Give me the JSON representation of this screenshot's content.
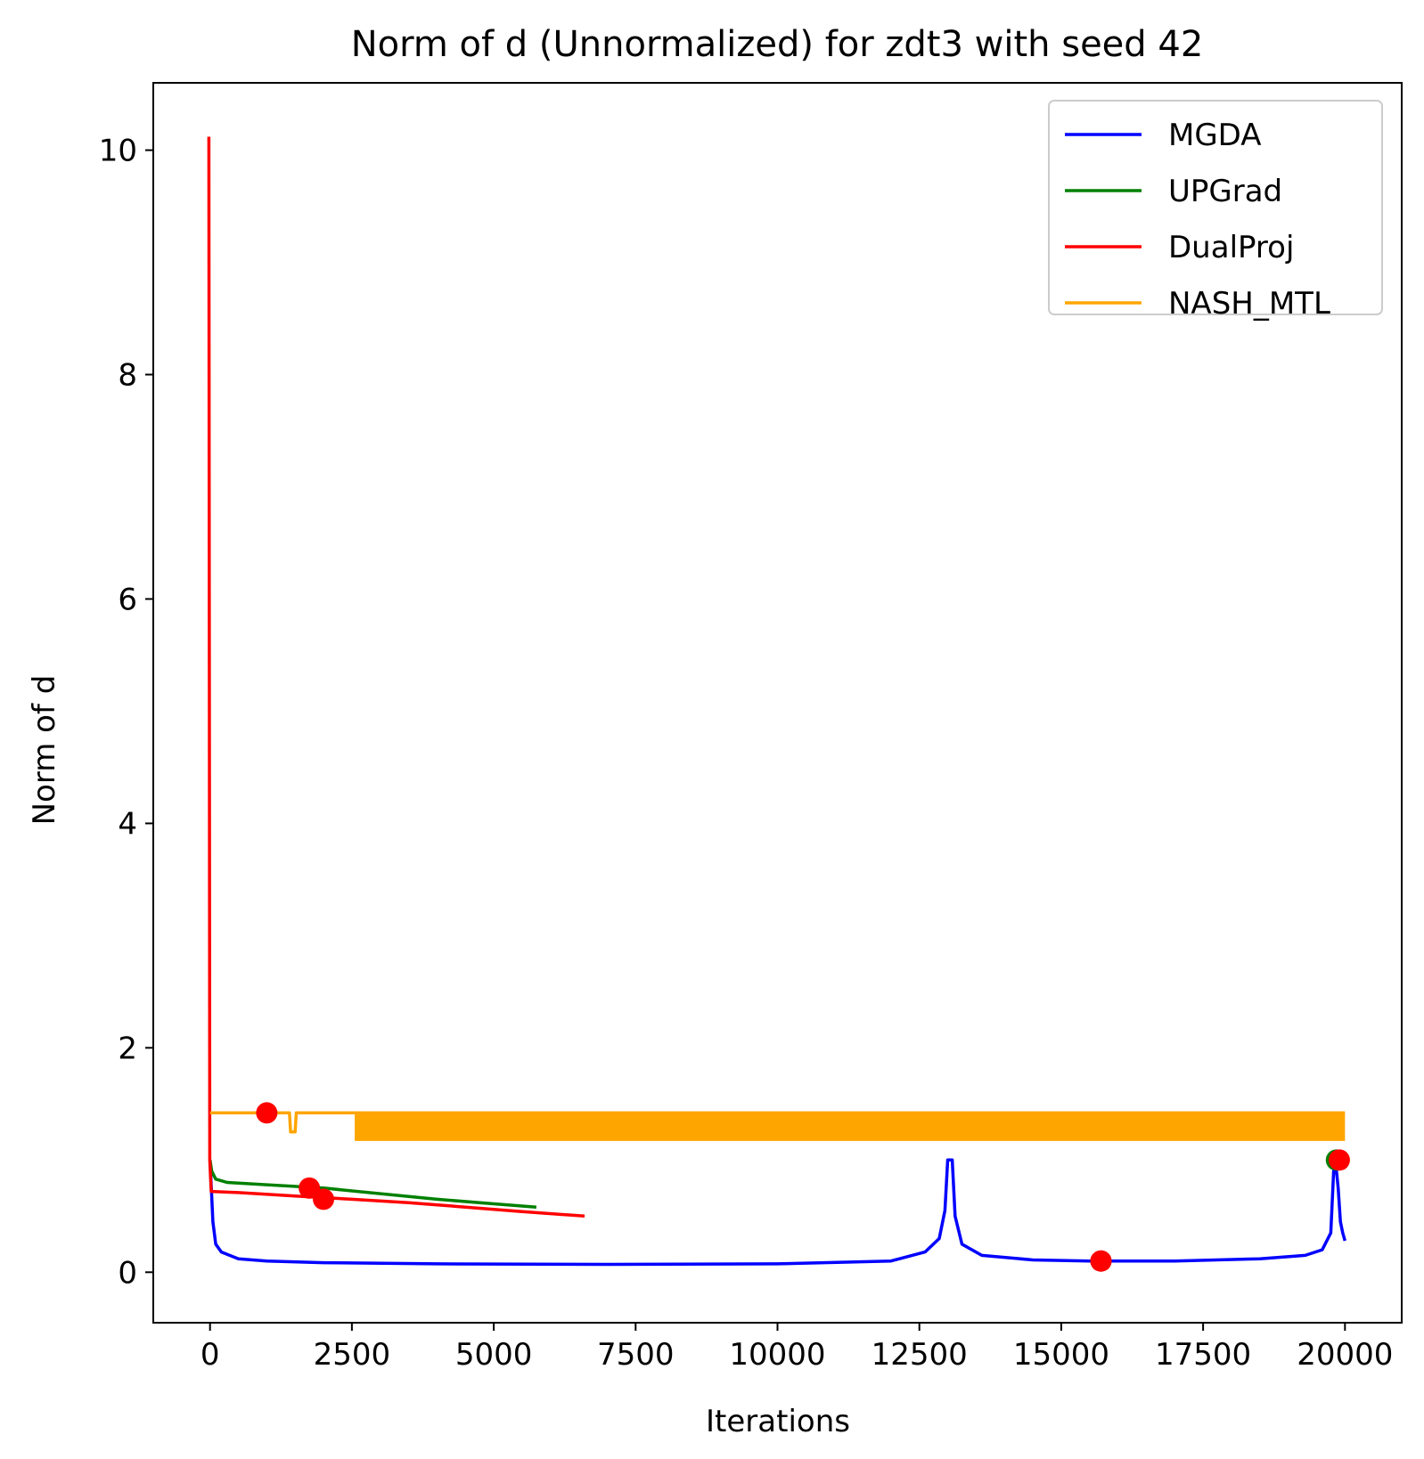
{
  "chart_data": {
    "type": "line",
    "title": "Norm of d (Unnormalized) for zdt3 with seed 42",
    "xlabel": "Iterations",
    "ylabel": "Norm of d",
    "xlim": [
      -1000,
      21000
    ],
    "ylim": [
      -0.45,
      10.6
    ],
    "xticks": [
      0,
      2500,
      5000,
      7500,
      10000,
      12500,
      15000,
      17500,
      20000
    ],
    "xtick_labels": [
      "0",
      "2500",
      "5000",
      "7500",
      "10000",
      "12500",
      "15000",
      "17500",
      "20000"
    ],
    "yticks": [
      0,
      2,
      4,
      6,
      8,
      10
    ],
    "ytick_labels": [
      "0",
      "2",
      "4",
      "6",
      "8",
      "10"
    ],
    "grid": false,
    "legend_position": "upper right",
    "series": [
      {
        "name": "MGDA",
        "color": "#0000ff",
        "points": [
          [
            0,
            1.0
          ],
          [
            50,
            0.45
          ],
          [
            100,
            0.25
          ],
          [
            200,
            0.18
          ],
          [
            500,
            0.12
          ],
          [
            1000,
            0.1
          ],
          [
            2000,
            0.085
          ],
          [
            4000,
            0.075
          ],
          [
            7000,
            0.07
          ],
          [
            10000,
            0.075
          ],
          [
            12000,
            0.1
          ],
          [
            12600,
            0.18
          ],
          [
            12850,
            0.3
          ],
          [
            12950,
            0.55
          ],
          [
            13000,
            1.0
          ],
          [
            13080,
            1.0
          ],
          [
            13130,
            0.5
          ],
          [
            13250,
            0.25
          ],
          [
            13600,
            0.15
          ],
          [
            14500,
            0.11
          ],
          [
            15500,
            0.1
          ],
          [
            17000,
            0.1
          ],
          [
            18500,
            0.12
          ],
          [
            19300,
            0.15
          ],
          [
            19600,
            0.2
          ],
          [
            19750,
            0.35
          ],
          [
            19800,
            0.9
          ],
          [
            19830,
            1.0
          ],
          [
            19880,
            0.75
          ],
          [
            19920,
            0.45
          ],
          [
            19960,
            0.35
          ],
          [
            20000,
            0.28
          ]
        ],
        "markers": [
          [
            15700,
            0.1
          ]
        ]
      },
      {
        "name": "UPGrad",
        "color": "#008000",
        "points": [
          [
            0,
            1.0
          ],
          [
            30,
            0.9
          ],
          [
            100,
            0.83
          ],
          [
            300,
            0.8
          ],
          [
            1000,
            0.78
          ],
          [
            2000,
            0.75
          ],
          [
            3000,
            0.7
          ],
          [
            4000,
            0.65
          ],
          [
            5000,
            0.61
          ],
          [
            5750,
            0.58
          ]
        ],
        "markers": [
          [
            19850,
            1.0
          ]
        ]
      },
      {
        "name": "DualProj",
        "color": "#ff0000",
        "points": [
          [
            -20,
            10.12
          ],
          [
            -5,
            1.0
          ],
          [
            20,
            0.72
          ],
          [
            500,
            0.71
          ],
          [
            1500,
            0.68
          ],
          [
            2500,
            0.65
          ],
          [
            3500,
            0.62
          ],
          [
            4500,
            0.58
          ],
          [
            5500,
            0.54
          ],
          [
            6600,
            0.5
          ]
        ],
        "markers": [
          [
            1000,
            1.42
          ],
          [
            1750,
            0.75
          ],
          [
            2000,
            0.65
          ],
          [
            15700,
            0.1
          ],
          [
            19900,
            1.0
          ]
        ]
      },
      {
        "name": "NASH_MTL",
        "color": "#ffa500",
        "points": [
          [
            0,
            1.42
          ],
          [
            1400,
            1.42
          ],
          [
            1420,
            1.25
          ],
          [
            1500,
            1.25
          ],
          [
            1520,
            1.42
          ],
          [
            2550,
            1.42
          ],
          [
            20000,
            1.42
          ]
        ],
        "band": {
          "x_start": 2550,
          "x_end": 20000,
          "y_low": 1.17,
          "y_high": 1.42
        },
        "markers": []
      }
    ]
  }
}
